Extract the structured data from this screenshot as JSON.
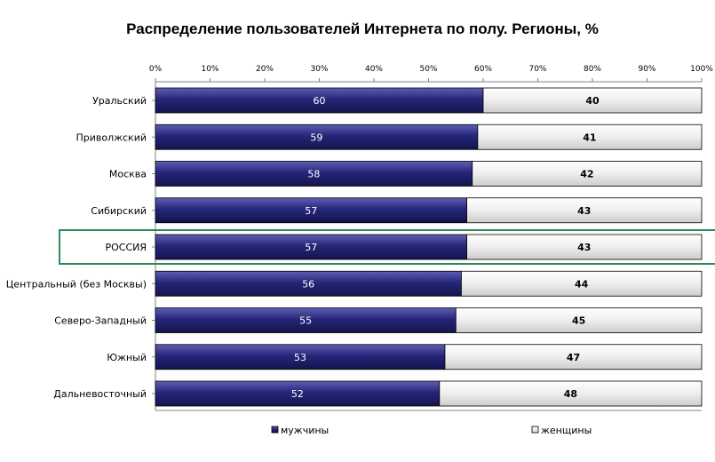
{
  "chart_data": {
    "type": "bar",
    "orientation": "horizontal",
    "stacked": true,
    "title": "Распределение пользователей Интернета по полу. Регионы, %",
    "categories": [
      "Уральский",
      "Приволжский",
      "Москва",
      "Сибирский",
      "РОССИЯ",
      "Центральный (без Москвы)",
      "Северо-Западный",
      "Южный",
      "Дальневосточный"
    ],
    "series": [
      {
        "name": "мужчины",
        "values": [
          60,
          59,
          58,
          57,
          57,
          56,
          55,
          53,
          52
        ],
        "color": "#26267a"
      },
      {
        "name": "женщины",
        "values": [
          40,
          41,
          42,
          43,
          43,
          44,
          45,
          47,
          48
        ],
        "color": "#e6e6e6"
      }
    ],
    "xlim": [
      0,
      100
    ],
    "x_ticks": [
      "0%",
      "10%",
      "20%",
      "30%",
      "40%",
      "50%",
      "60%",
      "70%",
      "80%",
      "90%",
      "100%"
    ],
    "highlight_category": "РОССИЯ",
    "highlight_color": "#2e8b57",
    "legend_position": "bottom",
    "legend": [
      "мужчины",
      "женщины"
    ]
  }
}
